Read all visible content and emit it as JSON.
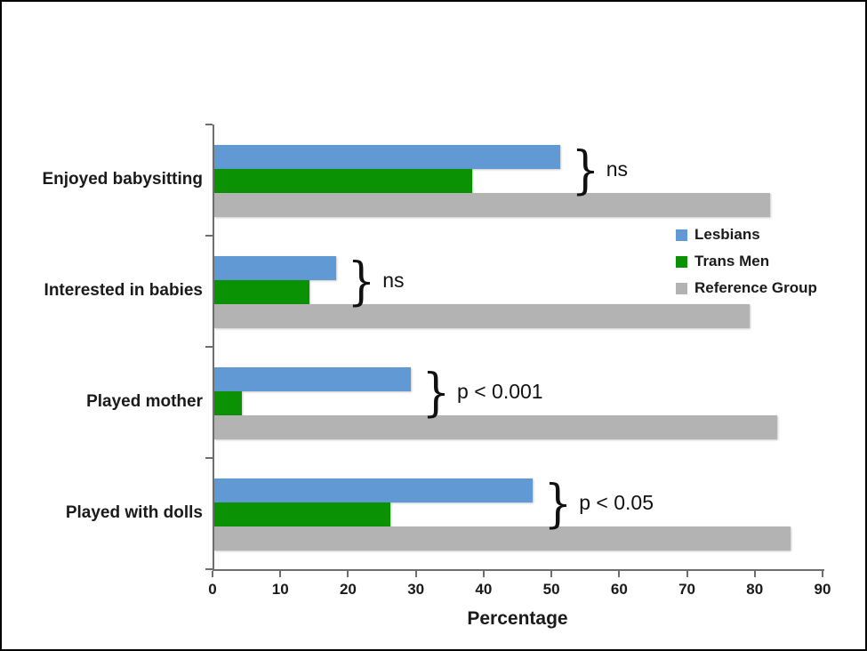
{
  "frame": {
    "background": "#ffffff",
    "border_color": "#000000",
    "axis_color": "#6e6e6e"
  },
  "chart_data": {
    "type": "bar",
    "orientation": "horizontal",
    "title": "",
    "xlabel": "Percentage",
    "ylabel": "",
    "xlim": [
      0,
      90
    ],
    "x_ticks": [
      0,
      10,
      20,
      30,
      40,
      50,
      60,
      70,
      80,
      90
    ],
    "grid": false,
    "legend_position": "upper-right",
    "categories": [
      "Enjoyed babysitting",
      "Interested in babies",
      "Played mother",
      "Played with dolls"
    ],
    "series": [
      {
        "name": "Lesbians",
        "color": "#6199D5",
        "values": [
          51,
          18,
          29,
          47
        ]
      },
      {
        "name": "Trans Men",
        "color": "#0B9104",
        "values": [
          38,
          14,
          4,
          26
        ]
      },
      {
        "name": "Reference Group",
        "color": "#B3B3B3",
        "values": [
          82,
          79,
          83,
          85
        ]
      }
    ],
    "annotations": [
      {
        "category": "Enjoyed babysitting",
        "label": "ns"
      },
      {
        "category": "Interested in babies",
        "label": "ns"
      },
      {
        "category": "Played mother",
        "label": "p < 0.001"
      },
      {
        "category": "Played with dolls",
        "label": "p < 0.05"
      }
    ],
    "brace_glyph": "}"
  }
}
